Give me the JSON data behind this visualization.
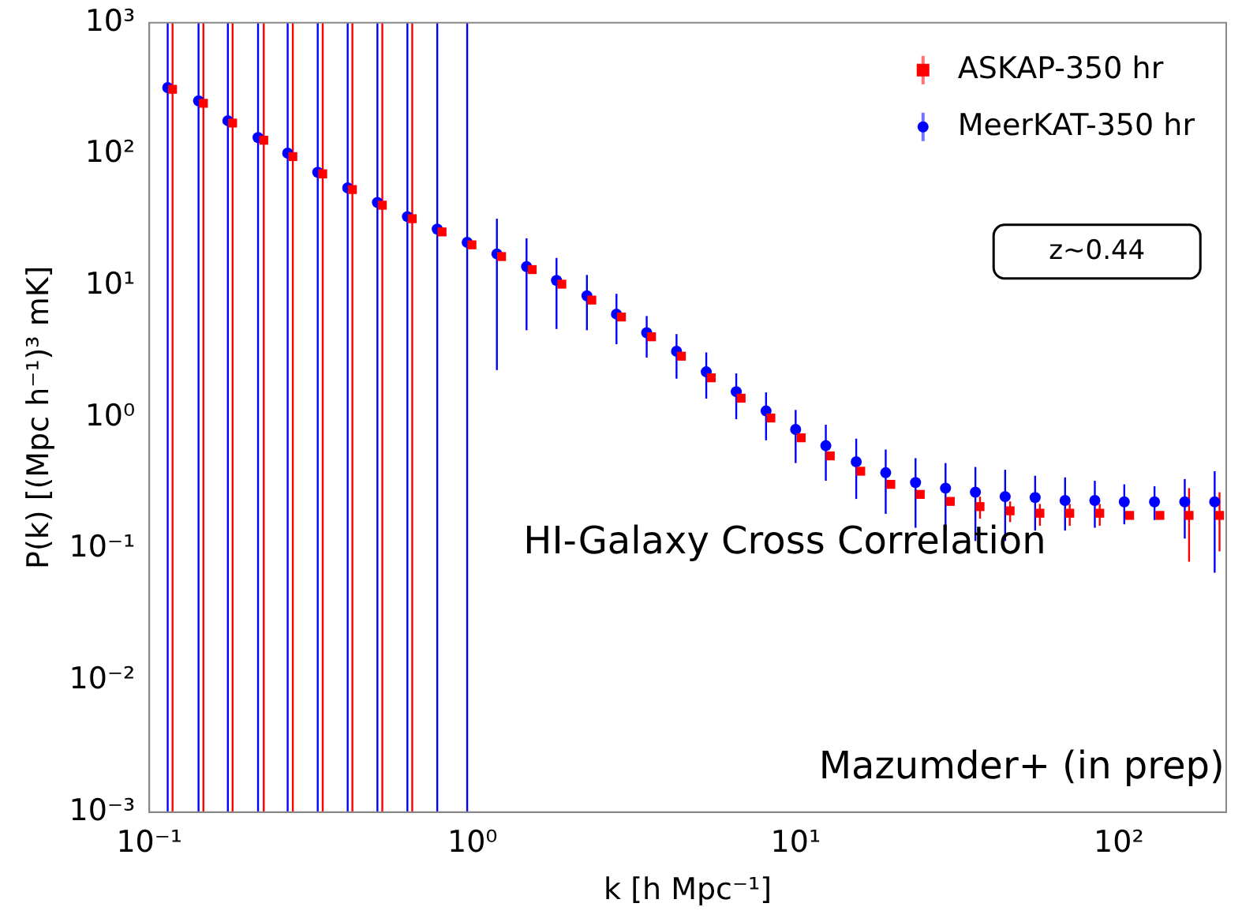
{
  "chart_data": {
    "type": "scatter",
    "xlabel": "k [h Mpc⁻¹]",
    "ylabel": "P(k) [(Mpc h⁻¹)³ mK]",
    "log": "xy",
    "grid": false,
    "legend": "top right",
    "xlim": [
      0.1,
      215
    ],
    "xticks": [
      {
        "value": 0.1,
        "label": "10⁻¹"
      },
      {
        "value": 1,
        "label": "10⁰"
      },
      {
        "value": 10,
        "label": "10¹"
      },
      {
        "value": 100,
        "label": "10²"
      }
    ],
    "ylim": [
      0.001,
      1000
    ],
    "yticks": [
      {
        "value": 0.001,
        "label": "10⁻³"
      },
      {
        "value": 0.01,
        "label": "10⁻²"
      },
      {
        "value": 0.1,
        "label": "10⁻¹"
      },
      {
        "value": 1,
        "label": "10⁰"
      },
      {
        "value": 10,
        "label": "10¹"
      },
      {
        "value": 100,
        "label": "10²"
      },
      {
        "value": 1000,
        "label": "10³"
      }
    ],
    "annotations": [
      "z~0.44",
      "HI-Galaxy Cross Correlation",
      "Mazumder+ (in prep)"
    ],
    "series": [
      {
        "name": "ASKAP-350 hr",
        "color": "#ff0000",
        "marker": "square",
        "x": [
          0.118,
          0.147,
          0.181,
          0.226,
          0.278,
          0.344,
          0.425,
          0.526,
          0.651,
          0.805,
          0.996,
          1.23,
          1.53,
          1.89,
          2.34,
          2.89,
          3.58,
          4.43,
          5.48,
          6.78,
          8.38,
          10.4,
          12.8,
          15.9,
          19.7,
          24.3,
          30.1,
          37.2,
          46.1,
          57.0,
          70.5,
          87.3,
          108,
          134,
          165,
          205
        ],
        "values": [
          312,
          244,
          173,
          128,
          96,
          71,
          54,
          41,
          32.4,
          25.7,
          20.5,
          16.7,
          13.3,
          10.3,
          7.8,
          5.8,
          4.1,
          2.92,
          2.0,
          1.4,
          0.99,
          0.7,
          0.51,
          0.39,
          0.31,
          0.26,
          0.23,
          0.21,
          0.195,
          0.187,
          0.187,
          0.187,
          0.18,
          0.18,
          0.18,
          0.18
        ],
        "errors": [
          [
            0.001,
            1000
          ],
          [
            0.001,
            1000
          ],
          [
            0.001,
            1000
          ],
          [
            0.001,
            1000
          ],
          [
            0.001,
            1000
          ],
          [
            0.001,
            1000
          ],
          [
            0.001,
            1000
          ],
          [
            0.001,
            1000
          ],
          [
            0.001,
            1000
          ],
          null,
          null,
          null,
          null,
          null,
          null,
          null,
          null,
          null,
          null,
          null,
          null,
          null,
          null,
          null,
          null,
          null,
          null,
          [
            0.17,
            0.25
          ],
          [
            0.16,
            0.23
          ],
          [
            0.15,
            0.22
          ],
          [
            0.15,
            0.22
          ],
          [
            0.15,
            0.22
          ],
          null,
          null,
          [
            0.08,
            0.29
          ],
          [
            0.096,
            0.27
          ]
        ]
      },
      {
        "name": "MeerKAT-350 hr",
        "color": "#0000ff",
        "marker": "circle",
        "x": [
          0.114,
          0.142,
          0.175,
          0.217,
          0.268,
          0.332,
          0.411,
          0.508,
          0.629,
          0.778,
          0.963,
          1.19,
          1.47,
          1.82,
          2.26,
          2.79,
          3.46,
          4.28,
          5.29,
          6.55,
          8.1,
          10.0,
          12.4,
          15.4,
          19.0,
          23.5,
          29.1,
          36.0,
          44.5,
          55.1,
          68.2,
          84.3,
          104,
          129,
          160,
          198
        ],
        "values": [
          321,
          255,
          180,
          134,
          102,
          73,
          55.6,
          43,
          33.6,
          27,
          21.4,
          17.5,
          14.0,
          11.0,
          8.4,
          6.1,
          4.4,
          3.18,
          2.22,
          1.57,
          1.12,
          0.81,
          0.61,
          0.46,
          0.38,
          0.32,
          0.29,
          0.27,
          0.25,
          0.246,
          0.234,
          0.234,
          0.228,
          0.228,
          0.228,
          0.228
        ],
        "errors": [
          [
            0.001,
            1000
          ],
          [
            0.001,
            1000
          ],
          [
            0.001,
            1000
          ],
          [
            0.001,
            1000
          ],
          [
            0.001,
            1000
          ],
          [
            0.001,
            1000
          ],
          [
            0.001,
            1000
          ],
          [
            0.001,
            1000
          ],
          [
            0.001,
            1000
          ],
          [
            0.001,
            1000
          ],
          [
            0.001,
            1000
          ],
          [
            2.29,
            32.4
          ],
          [
            4.6,
            23
          ],
          [
            4.7,
            16.3
          ],
          [
            4.6,
            12.1
          ],
          [
            3.6,
            8.7
          ],
          [
            2.85,
            5.9
          ],
          [
            1.97,
            4.3
          ],
          [
            1.39,
            3.12
          ],
          [
            0.97,
            2.16
          ],
          [
            0.67,
            1.55
          ],
          [
            0.45,
            1.14
          ],
          [
            0.33,
            0.88
          ],
          [
            0.24,
            0.69
          ],
          [
            0.185,
            0.57
          ],
          [
            0.145,
            0.49
          ],
          [
            0.138,
            0.45
          ],
          [
            0.115,
            0.42
          ],
          [
            0.115,
            0.4
          ],
          [
            0.138,
            0.36
          ],
          [
            0.138,
            0.35
          ],
          [
            0.145,
            0.33
          ],
          [
            0.154,
            0.31
          ],
          [
            0.166,
            0.3
          ],
          [
            0.12,
            0.34
          ],
          [
            0.066,
            0.39
          ]
        ]
      }
    ]
  }
}
